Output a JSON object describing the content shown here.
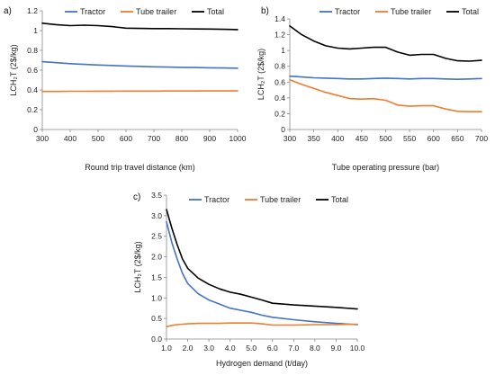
{
  "legend": [
    "Tractor",
    "Tube trailer",
    "Total"
  ],
  "colors": {
    "Tractor": "#4472C4",
    "Tube trailer": "#ED7D31",
    "Total": "#000000"
  },
  "chart_data": [
    {
      "type": "line",
      "panel_label": "a)",
      "xlabel": "Round trip travel distance (km)",
      "ylabel": "LCH₂T (2$/kg)",
      "xlim": [
        300,
        1000
      ],
      "ylim": [
        0,
        1.2
      ],
      "xticks": [
        300,
        400,
        500,
        600,
        700,
        800,
        900,
        1000
      ],
      "yticks": [
        0,
        0.2,
        0.4,
        0.6,
        0.8,
        1.0,
        1.2
      ],
      "ytick_labels": [
        "0",
        "0.2",
        "0.4",
        "0.6",
        "0.8",
        "1",
        "1.2"
      ],
      "x": [
        300,
        350,
        400,
        450,
        500,
        550,
        600,
        650,
        700,
        750,
        800,
        850,
        900,
        950,
        1000
      ],
      "series": [
        {
          "name": "Tractor",
          "values": [
            0.685,
            0.675,
            0.665,
            0.658,
            0.652,
            0.647,
            0.642,
            0.638,
            0.634,
            0.631,
            0.628,
            0.626,
            0.624,
            0.622,
            0.62
          ]
        },
        {
          "name": "Tube trailer",
          "values": [
            0.385,
            0.385,
            0.386,
            0.386,
            0.387,
            0.387,
            0.388,
            0.388,
            0.388,
            0.389,
            0.389,
            0.389,
            0.39,
            0.39,
            0.39
          ]
        },
        {
          "name": "Total",
          "values": [
            1.075,
            1.06,
            1.05,
            1.055,
            1.05,
            1.04,
            1.025,
            1.022,
            1.02,
            1.02,
            1.018,
            1.016,
            1.015,
            1.013,
            1.01
          ]
        }
      ]
    },
    {
      "type": "line",
      "panel_label": "b)",
      "xlabel": "Tube operating pressure (bar)",
      "ylabel": "LCH₂T (2$/kg)",
      "xlim": [
        300,
        700
      ],
      "ylim": [
        0,
        1.4
      ],
      "xticks": [
        300,
        350,
        400,
        450,
        500,
        550,
        600,
        650,
        700
      ],
      "yticks": [
        0,
        0.2,
        0.4,
        0.6,
        0.8,
        1.0,
        1.2,
        1.4
      ],
      "ytick_labels": [
        "0",
        "0.2",
        "0.4",
        "0.6",
        "0.8",
        "1",
        "1.2",
        "1.4"
      ],
      "x": [
        300,
        325,
        350,
        375,
        400,
        425,
        450,
        475,
        500,
        525,
        550,
        575,
        600,
        625,
        650,
        675,
        700
      ],
      "series": [
        {
          "name": "Tractor",
          "values": [
            0.675,
            0.665,
            0.655,
            0.65,
            0.645,
            0.64,
            0.64,
            0.645,
            0.65,
            0.645,
            0.64,
            0.645,
            0.645,
            0.64,
            0.635,
            0.64,
            0.645
          ]
        },
        {
          "name": "Tube trailer",
          "values": [
            0.63,
            0.57,
            0.52,
            0.47,
            0.43,
            0.39,
            0.385,
            0.39,
            0.37,
            0.31,
            0.295,
            0.3,
            0.3,
            0.26,
            0.23,
            0.225,
            0.225
          ]
        },
        {
          "name": "Total",
          "values": [
            1.31,
            1.2,
            1.12,
            1.06,
            1.03,
            1.02,
            1.03,
            1.04,
            1.04,
            0.98,
            0.94,
            0.95,
            0.95,
            0.9,
            0.87,
            0.865,
            0.875
          ]
        }
      ]
    },
    {
      "type": "line",
      "panel_label": "c)",
      "xlabel": "Hydrogen demand (t/day)",
      "ylabel": "LCH₂T (2$/kg)",
      "xlim": [
        1,
        10
      ],
      "ylim": [
        0,
        3.5
      ],
      "xticks": [
        1,
        2,
        3,
        4,
        5,
        6,
        7,
        8,
        9,
        10
      ],
      "xtick_labels": [
        "1.0",
        "2.0",
        "3.0",
        "4.0",
        "5.0",
        "6.0",
        "7.0",
        "8.0",
        "9.0",
        "10.0"
      ],
      "yticks": [
        0,
        0.5,
        1.0,
        1.5,
        2.0,
        2.5,
        3.0,
        3.5
      ],
      "ytick_labels": [
        "0.0",
        "0.5",
        "1.0",
        "1.5",
        "2.0",
        "2.5",
        "3.0",
        "3.5"
      ],
      "x": [
        1,
        1.25,
        1.5,
        1.75,
        2,
        2.5,
        3,
        3.5,
        4,
        4.5,
        5,
        5.5,
        6,
        7,
        8,
        9,
        10
      ],
      "series": [
        {
          "name": "Tractor",
          "values": [
            2.85,
            2.35,
            1.95,
            1.6,
            1.35,
            1.1,
            0.95,
            0.85,
            0.75,
            0.7,
            0.65,
            0.58,
            0.53,
            0.47,
            0.42,
            0.38,
            0.35
          ]
        },
        {
          "name": "Tube trailer",
          "values": [
            0.3,
            0.33,
            0.35,
            0.36,
            0.37,
            0.38,
            0.38,
            0.38,
            0.39,
            0.39,
            0.39,
            0.37,
            0.34,
            0.34,
            0.35,
            0.35,
            0.36
          ]
        },
        {
          "name": "Total",
          "values": [
            3.15,
            2.7,
            2.3,
            1.95,
            1.72,
            1.48,
            1.33,
            1.22,
            1.14,
            1.09,
            1.02,
            0.95,
            0.87,
            0.83,
            0.8,
            0.77,
            0.73
          ]
        }
      ]
    }
  ]
}
